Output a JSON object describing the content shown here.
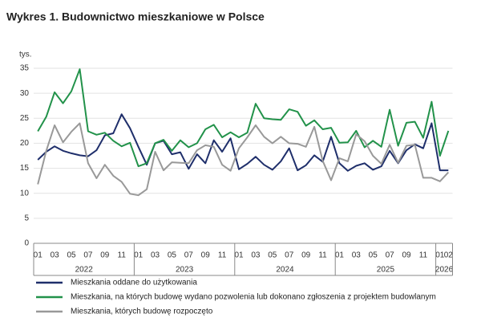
{
  "chart_data": {
    "type": "line",
    "title": "Wykres 1. Budownictwo mieszkaniowe w Polsce",
    "y_label": "tys.",
    "categories": [
      "01",
      null,
      "03",
      null,
      "05",
      null,
      "07",
      null,
      "09",
      null,
      "11",
      null,
      "01",
      null,
      "03",
      null,
      "05",
      null,
      "07",
      null,
      "09",
      null,
      "11",
      null,
      "01",
      null,
      "03",
      null,
      "05",
      null,
      "07",
      null,
      "09",
      null,
      "11",
      null,
      "01",
      null,
      "03",
      null,
      "05",
      null,
      "07",
      null,
      "09",
      null,
      "11",
      null,
      "01",
      "02"
    ],
    "years": [
      "2022",
      "2023",
      "2024",
      "2025",
      "2026"
    ],
    "ylim": [
      0,
      35
    ],
    "yticks": [
      0,
      5,
      10,
      15,
      20,
      25,
      30,
      35
    ],
    "grid": true,
    "series": [
      {
        "name": "Mieszkania oddane do użytkowania",
        "color": "#1f2f6b",
        "values": [
          16.7,
          18.3,
          19.4,
          18.5,
          18.0,
          17.6,
          17.4,
          18.6,
          21.6,
          22.0,
          25.8,
          23.0,
          19.3,
          15.7,
          20.0,
          20.5,
          17.8,
          18.2,
          14.9,
          17.8,
          16.0,
          20.6,
          18.3,
          21.0,
          14.8,
          15.9,
          17.3,
          15.7,
          14.7,
          16.4,
          19.0,
          14.6,
          15.6,
          17.6,
          16.3,
          21.3,
          16.0,
          14.5,
          15.5,
          16.0,
          14.7,
          15.4,
          18.5,
          16.0,
          18.6,
          19.8,
          19.0,
          24.0,
          14.6,
          14.6
        ]
      },
      {
        "name": "Mieszkania, na których budowę wydano pozwolenia lub dokonano zgłoszenia z projektem budowlanym",
        "color": "#22924a",
        "values": [
          22.4,
          25.3,
          30.2,
          28.0,
          30.4,
          34.8,
          22.4,
          21.7,
          22.1,
          20.5,
          19.4,
          20.1,
          15.4,
          16.0,
          20.0,
          20.7,
          18.5,
          20.6,
          19.2,
          20.0,
          22.8,
          23.7,
          21.2,
          22.2,
          21.2,
          22.1,
          27.9,
          25.0,
          24.8,
          24.7,
          26.8,
          26.3,
          23.5,
          24.6,
          22.8,
          23.1,
          20.1,
          20.2,
          22.5,
          19.2,
          20.5,
          19.3,
          26.7,
          19.5,
          24.1,
          24.3,
          21.1,
          28.3,
          17.5,
          22.5
        ]
      },
      {
        "name": "Mieszkania, których budowę rozpoczęto",
        "color": "#999999",
        "values": [
          11.8,
          18.5,
          23.6,
          20.2,
          22.3,
          24.0,
          16.0,
          13.0,
          15.7,
          13.5,
          12.3,
          9.9,
          9.6,
          10.8,
          18.3,
          14.6,
          16.2,
          16.1,
          16.0,
          18.6,
          19.6,
          19.3,
          15.7,
          14.5,
          19.0,
          21.2,
          23.6,
          21.3,
          20.0,
          21.3,
          20.0,
          19.9,
          19.3,
          23.3,
          16.5,
          12.6,
          17.0,
          16.4,
          21.8,
          20.4,
          17.5,
          15.9,
          19.7,
          16.1,
          19.5,
          19.7,
          13.1,
          13.1,
          12.4,
          14.2
        ]
      }
    ]
  }
}
